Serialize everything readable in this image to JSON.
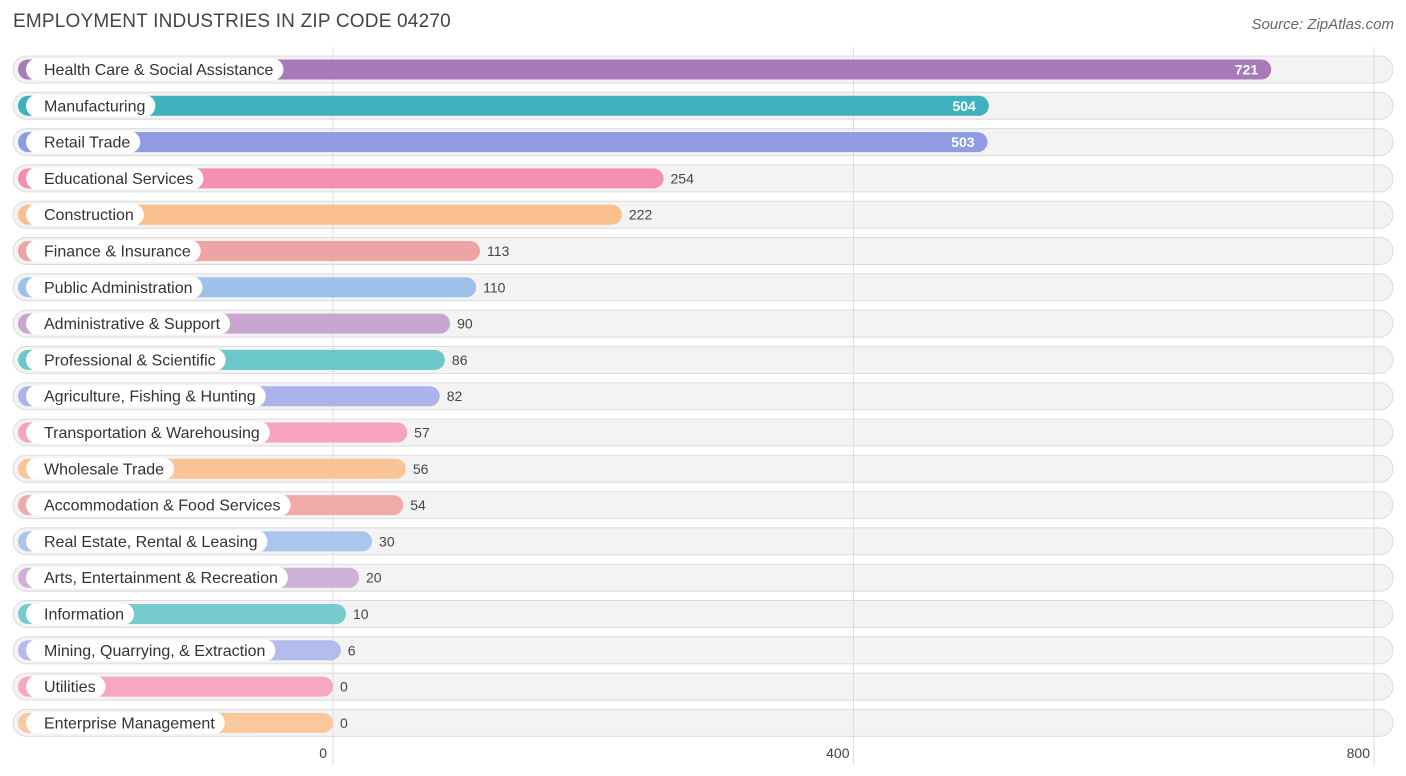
{
  "chart_data": {
    "type": "bar",
    "orientation": "horizontal",
    "title": "EMPLOYMENT INDUSTRIES IN ZIP CODE 04270",
    "source": "Source: ZipAtlas.com",
    "xlim": [
      0,
      800
    ],
    "ticks": [
      0,
      400,
      800
    ],
    "categories": [
      "Health Care & Social Assistance",
      "Manufacturing",
      "Retail Trade",
      "Educational Services",
      "Construction",
      "Finance & Insurance",
      "Public Administration",
      "Administrative & Support",
      "Professional & Scientific",
      "Agriculture, Fishing & Hunting",
      "Transportation & Warehousing",
      "Wholesale Trade",
      "Accommodation & Food Services",
      "Real Estate, Rental & Leasing",
      "Arts, Entertainment & Recreation",
      "Information",
      "Mining, Quarrying, & Extraction",
      "Utilities",
      "Enterprise Management"
    ],
    "values": [
      721,
      504,
      503,
      254,
      222,
      113,
      110,
      90,
      86,
      82,
      57,
      56,
      54,
      30,
      20,
      10,
      6,
      0,
      0
    ],
    "colors": [
      "#a97ab8",
      "#3fb1bd",
      "#8f9ce3",
      "#f48fb1",
      "#f9c08e",
      "#eea4a4",
      "#9ec1ea",
      "#c9a6d0",
      "#6cc7cb",
      "#aab4ea",
      "#f6a2c1",
      "#fac596",
      "#f0aaaa",
      "#a9c6ef",
      "#cfb0d6",
      "#76cbcd",
      "#b4bcee",
      "#f7a7c4",
      "#fbc89e"
    ]
  }
}
